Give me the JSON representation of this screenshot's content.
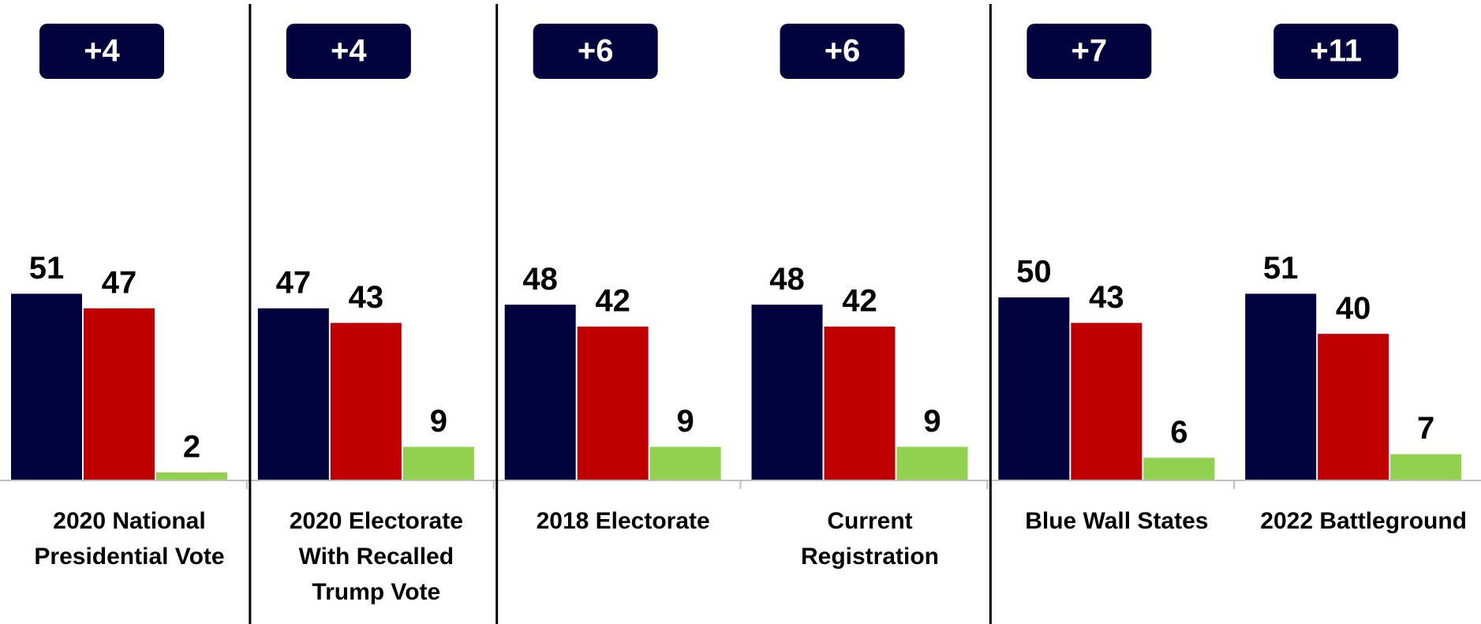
{
  "chart_data": {
    "type": "bar",
    "categories": [
      "2020 National\nPresidential Vote",
      "2020 Electorate\nWith Recalled\nTrump Vote",
      "2018 Electorate",
      "Current\nRegistration",
      "Blue Wall States",
      "2022 Battleground"
    ],
    "series": [
      {
        "color": "#02023f",
        "values": [
          51,
          47,
          48,
          48,
          50,
          51
        ]
      },
      {
        "color": "#c00000",
        "values": [
          47,
          43,
          42,
          42,
          43,
          40
        ]
      },
      {
        "color": "#92d050",
        "values": [
          2,
          9,
          9,
          9,
          6,
          7
        ]
      }
    ],
    "annotations": [
      "+4",
      "+4",
      "+6",
      "+6",
      "+7",
      "+11"
    ],
    "ylim": [
      0,
      100
    ]
  }
}
